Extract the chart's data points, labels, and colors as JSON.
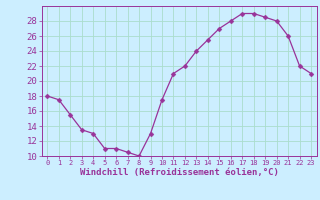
{
  "x": [
    0,
    1,
    2,
    3,
    4,
    5,
    6,
    7,
    8,
    9,
    10,
    11,
    12,
    13,
    14,
    15,
    16,
    17,
    18,
    19,
    20,
    21,
    22,
    23
  ],
  "y": [
    18,
    17.5,
    15.5,
    13.5,
    13,
    11,
    11,
    10.5,
    10,
    13,
    17.5,
    21,
    22,
    24,
    25.5,
    27,
    28,
    29,
    29,
    28.5,
    28,
    26,
    22,
    21
  ],
  "line_color": "#993399",
  "marker": "D",
  "marker_size": 2.5,
  "bg_color": "#cceeff",
  "grid_color": "#aaddcc",
  "tick_color": "#993399",
  "label_color": "#993399",
  "xlabel": "Windchill (Refroidissement éolien,°C)",
  "ylim": [
    10,
    30
  ],
  "ytick_values": [
    10,
    12,
    14,
    16,
    18,
    20,
    22,
    24,
    26,
    28
  ],
  "xtick_values": [
    0,
    1,
    2,
    3,
    4,
    5,
    6,
    7,
    8,
    9,
    10,
    11,
    12,
    13,
    14,
    15,
    16,
    17,
    18,
    19,
    20,
    21,
    22,
    23
  ],
  "xlim": [
    -0.5,
    23.5
  ],
  "font_size_label": 6.5,
  "font_size_xtick": 5.0,
  "font_size_ytick": 6.5
}
